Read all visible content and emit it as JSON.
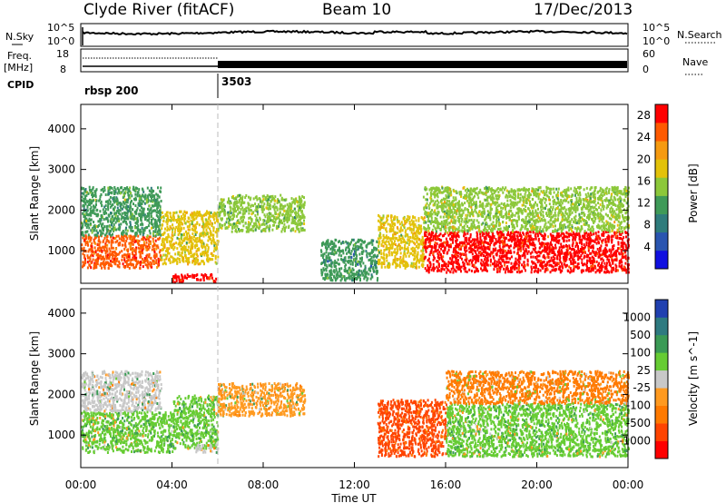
{
  "header": {
    "station": "Clyde River (fitACF)",
    "beam": "Beam 10",
    "date": "17/Dec/2013"
  },
  "panels": {
    "nsky_label": "N.Sky",
    "nsky_ticks": [
      "10^5",
      "10^0"
    ],
    "nsearch_label": "N.Search",
    "nsearch_ticks": [
      "10^5",
      "10^0"
    ],
    "freq_label": "Freq.",
    "freq_unit": "[MHz]",
    "freq_ticks": [
      "18",
      "8"
    ],
    "nave_label": "Nave",
    "nave_ticks": [
      "60",
      "0"
    ],
    "cpid_label": "CPID",
    "cpid_segments": [
      {
        "label": "rbsp 200",
        "start_hour": 0
      },
      {
        "label": "3503",
        "start_hour": 6
      }
    ]
  },
  "colors": {
    "power_scale": [
      "#1010e0",
      "#2a55b0",
      "#2f7c7c",
      "#3f9a58",
      "#8cc83a",
      "#e3c20a",
      "#f59a10",
      "#ff5a00",
      "#ff0000"
    ],
    "velocity_scale": [
      "#ff0000",
      "#ff4400",
      "#ff7a00",
      "#ff9a20",
      "#c8c8c8",
      "#66cc33",
      "#3a9a55",
      "#2e7a80",
      "#2040b0"
    ]
  },
  "chart_data": [
    {
      "type": "heatmap",
      "title": "Power",
      "xlabel": "",
      "ylabel": "Slant Range [km]",
      "x_ticks": [
        "00:00",
        "04:00",
        "08:00",
        "12:00",
        "16:00",
        "20:00",
        "00:00"
      ],
      "xlim_hours": [
        0,
        24
      ],
      "y_ticks": [
        1000,
        2000,
        3000,
        4000
      ],
      "ylim": [
        200,
        4600
      ],
      "colorbar_label": "Power [dB]",
      "colorbar_ticks": [
        4,
        8,
        12,
        16,
        20,
        24,
        28
      ],
      "colorbar_range": [
        0,
        30
      ],
      "echo_regions": [
        {
          "hours": [
            0,
            3.5
          ],
          "range_km": [
            600,
            1400
          ],
          "level": 26
        },
        {
          "hours": [
            0,
            3.5
          ],
          "range_km": [
            1400,
            2600
          ],
          "level": 12
        },
        {
          "hours": [
            3.5,
            6
          ],
          "range_km": [
            700,
            2000
          ],
          "level": 18
        },
        {
          "hours": [
            4,
            6
          ],
          "range_km": [
            250,
            450
          ],
          "level": 28
        },
        {
          "hours": [
            6,
            9.8
          ],
          "range_km": [
            1500,
            2400
          ],
          "level": 14
        },
        {
          "hours": [
            10.5,
            13
          ],
          "range_km": [
            300,
            1300
          ],
          "level": 10
        },
        {
          "hours": [
            13,
            15
          ],
          "range_km": [
            600,
            1900
          ],
          "level": 18
        },
        {
          "hours": [
            15,
            24
          ],
          "range_km": [
            500,
            1500
          ],
          "level": 28
        },
        {
          "hours": [
            15,
            24
          ],
          "range_km": [
            1500,
            2600
          ],
          "level": 16
        }
      ]
    },
    {
      "type": "heatmap",
      "title": "Velocity",
      "xlabel": "Time UT",
      "ylabel": "Slant Range [km]",
      "x_ticks": [
        "00:00",
        "04:00",
        "08:00",
        "12:00",
        "16:00",
        "20:00",
        "00:00"
      ],
      "xlim_hours": [
        0,
        24
      ],
      "y_ticks": [
        1000,
        2000,
        3000,
        4000
      ],
      "ylim": [
        200,
        4600
      ],
      "colorbar_label": "Velocity [m s^-1]",
      "colorbar_ticks": [
        1000,
        500,
        100,
        25,
        -25,
        -100,
        -500,
        -1000
      ],
      "echo_regions": [
        {
          "hours": [
            0,
            4
          ],
          "range_km": [
            600,
            1600
          ],
          "level": 100
        },
        {
          "hours": [
            0,
            3.5
          ],
          "range_km": [
            1600,
            2600
          ],
          "level": 25
        },
        {
          "hours": [
            4,
            6
          ],
          "range_km": [
            700,
            2000
          ],
          "level": 100
        },
        {
          "hours": [
            5,
            6
          ],
          "range_km": [
            600,
            800
          ],
          "level": 0
        },
        {
          "hours": [
            6,
            9.8
          ],
          "range_km": [
            1500,
            2300
          ],
          "level": -25
        },
        {
          "hours": [
            13,
            16
          ],
          "range_km": [
            500,
            1900
          ],
          "level": -500
        },
        {
          "hours": [
            16,
            24
          ],
          "range_km": [
            500,
            1800
          ],
          "level": 100
        },
        {
          "hours": [
            16,
            24
          ],
          "range_km": [
            1800,
            2600
          ],
          "level": -100
        }
      ]
    }
  ]
}
